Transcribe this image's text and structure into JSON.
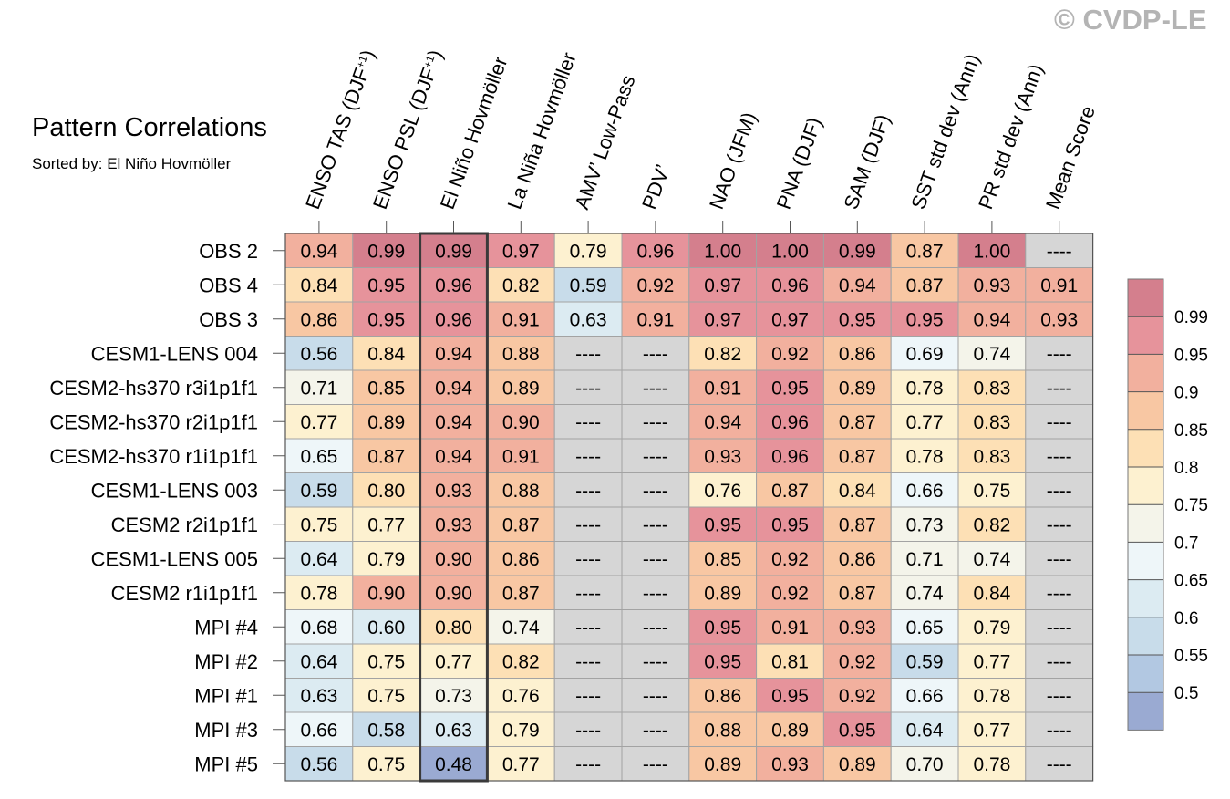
{
  "title": "Pattern Correlations",
  "subtitle": "Sorted by: El Niño Hovmöller",
  "watermark": "© CVDP-LE",
  "chart_data": {
    "type": "heatmap",
    "columns": [
      {
        "label": "ENSO TAS (DJF",
        "sup": "+1",
        "suffix": ")"
      },
      {
        "label": "ENSO PSL (DJF",
        "sup": "+1",
        "suffix": ")"
      },
      {
        "label": "El Niño Hovmöller"
      },
      {
        "label": "La Niña Hovmöller"
      },
      {
        "label": "AMV’ Low-Pass"
      },
      {
        "label": "PDV’"
      },
      {
        "label": "NAO (JFM)"
      },
      {
        "label": "PNA (DJF)"
      },
      {
        "label": "SAM (DJF)"
      },
      {
        "label": "SST std dev (Ann)"
      },
      {
        "label": "PR std dev (Ann)"
      },
      {
        "label": "Mean Score"
      }
    ],
    "highlighted_column": "El Niño Hovmöller",
    "rows": [
      {
        "name": "OBS 2",
        "values": [
          "0.94",
          "0.99",
          "0.99",
          "0.97",
          "0.79",
          "0.96",
          "1.00",
          "1.00",
          "0.99",
          "0.87",
          "1.00",
          "----"
        ]
      },
      {
        "name": "OBS 4",
        "values": [
          "0.84",
          "0.95",
          "0.96",
          "0.82",
          "0.59",
          "0.92",
          "0.97",
          "0.96",
          "0.94",
          "0.87",
          "0.93",
          "0.91"
        ]
      },
      {
        "name": "OBS 3",
        "values": [
          "0.86",
          "0.95",
          "0.96",
          "0.91",
          "0.63",
          "0.91",
          "0.97",
          "0.97",
          "0.95",
          "0.95",
          "0.94",
          "0.93"
        ]
      },
      {
        "name": "CESM1-LENS 004",
        "values": [
          "0.56",
          "0.84",
          "0.94",
          "0.88",
          "----",
          "----",
          "0.82",
          "0.92",
          "0.86",
          "0.69",
          "0.74",
          "----"
        ]
      },
      {
        "name": "CESM2-hs370 r3i1p1f1",
        "values": [
          "0.71",
          "0.85",
          "0.94",
          "0.89",
          "----",
          "----",
          "0.91",
          "0.95",
          "0.89",
          "0.78",
          "0.83",
          "----"
        ]
      },
      {
        "name": "CESM2-hs370 r2i1p1f1",
        "values": [
          "0.77",
          "0.89",
          "0.94",
          "0.90",
          "----",
          "----",
          "0.94",
          "0.96",
          "0.87",
          "0.77",
          "0.83",
          "----"
        ]
      },
      {
        "name": "CESM2-hs370 r1i1p1f1",
        "values": [
          "0.65",
          "0.87",
          "0.94",
          "0.91",
          "----",
          "----",
          "0.93",
          "0.96",
          "0.87",
          "0.78",
          "0.83",
          "----"
        ]
      },
      {
        "name": "CESM1-LENS 003",
        "values": [
          "0.59",
          "0.80",
          "0.93",
          "0.88",
          "----",
          "----",
          "0.76",
          "0.87",
          "0.84",
          "0.66",
          "0.75",
          "----"
        ]
      },
      {
        "name": "CESM2 r2i1p1f1",
        "values": [
          "0.75",
          "0.77",
          "0.93",
          "0.87",
          "----",
          "----",
          "0.95",
          "0.95",
          "0.87",
          "0.73",
          "0.82",
          "----"
        ]
      },
      {
        "name": "CESM1-LENS 005",
        "values": [
          "0.64",
          "0.79",
          "0.90",
          "0.86",
          "----",
          "----",
          "0.85",
          "0.92",
          "0.86",
          "0.71",
          "0.74",
          "----"
        ]
      },
      {
        "name": "CESM2 r1i1p1f1",
        "values": [
          "0.78",
          "0.90",
          "0.90",
          "0.87",
          "----",
          "----",
          "0.89",
          "0.92",
          "0.87",
          "0.74",
          "0.84",
          "----"
        ]
      },
      {
        "name": "MPI #4",
        "values": [
          "0.68",
          "0.60",
          "0.80",
          "0.74",
          "----",
          "----",
          "0.95",
          "0.91",
          "0.93",
          "0.65",
          "0.79",
          "----"
        ]
      },
      {
        "name": "MPI #2",
        "values": [
          "0.64",
          "0.75",
          "0.77",
          "0.82",
          "----",
          "----",
          "0.95",
          "0.81",
          "0.92",
          "0.59",
          "0.77",
          "----"
        ]
      },
      {
        "name": "MPI #1",
        "values": [
          "0.63",
          "0.75",
          "0.73",
          "0.76",
          "----",
          "----",
          "0.86",
          "0.95",
          "0.92",
          "0.66",
          "0.78",
          "----"
        ]
      },
      {
        "name": "MPI #3",
        "values": [
          "0.66",
          "0.58",
          "0.63",
          "0.79",
          "----",
          "----",
          "0.88",
          "0.89",
          "0.95",
          "0.64",
          "0.77",
          "----"
        ]
      },
      {
        "name": "MPI #5",
        "values": [
          "0.56",
          "0.75",
          "0.48",
          "0.77",
          "----",
          "----",
          "0.89",
          "0.93",
          "0.89",
          "0.70",
          "0.78",
          "----"
        ]
      }
    ],
    "missing_value": "----",
    "colorbar": {
      "levels": [
        0.5,
        0.55,
        0.6,
        0.65,
        0.7,
        0.75,
        0.8,
        0.85,
        0.9,
        0.95,
        0.99
      ],
      "tick_labels": [
        "0.5",
        "0.55",
        "0.6",
        "0.65",
        "0.7",
        "0.75",
        "0.8",
        "0.85",
        "0.9",
        "0.95",
        "0.99"
      ],
      "colors": [
        "#9aaad2",
        "#b2c8e2",
        "#c8dcea",
        "#dcebf2",
        "#eef6f9",
        "#f4f4ea",
        "#fdf1d0",
        "#fde0b5",
        "#f8c7a3",
        "#f2b09e",
        "#e6939b",
        "#d47f8d"
      ],
      "missing_color": "#d6d6d6"
    }
  }
}
